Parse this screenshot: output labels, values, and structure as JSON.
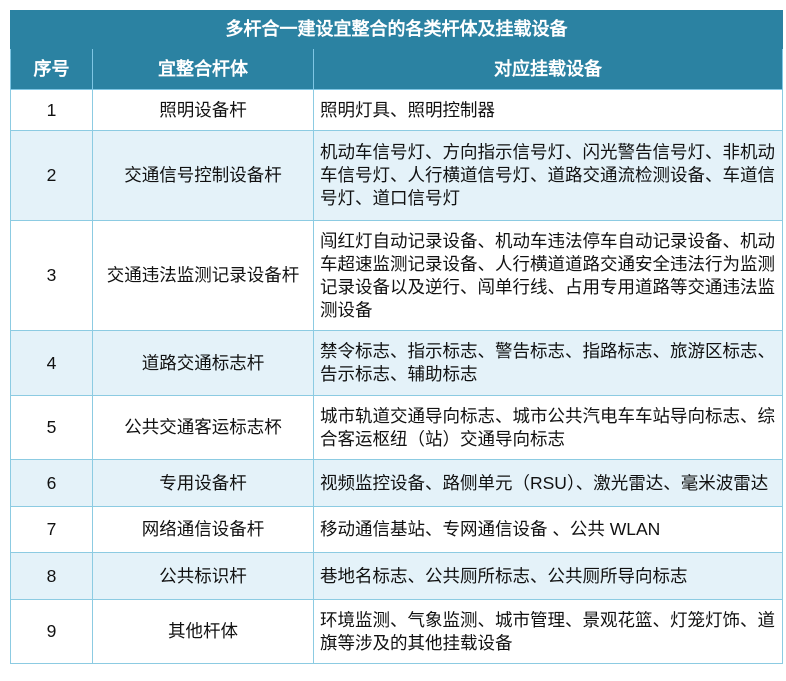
{
  "title": "多杆合一建设宜整合的各类杆体及挂载设备",
  "headers": [
    "序号",
    "宜整合杆体",
    "对应挂载设备"
  ],
  "rows": [
    {
      "no": "1",
      "pole": "照明设备杆",
      "devices": "照明灯具、照明控制器"
    },
    {
      "no": "2",
      "pole": "交通信号控制设备杆",
      "devices": "机动车信号灯、方向指示信号灯、闪光警告信号灯、非机动车信号灯、人行横道信号灯、道路交通流检测设备、车道信号灯、道口信号灯"
    },
    {
      "no": "3",
      "pole": "交通违法监测记录设备杆",
      "devices": "闯红灯自动记录设备、机动车违法停车自动记录设备、机动车超速监测记录设备、人行横道道路交通安全违法行为监测记录设备以及逆行、闯单行线、占用专用道路等交通违法监测设备"
    },
    {
      "no": "4",
      "pole": "道路交通标志杆",
      "devices": "禁令标志、指示标志、警告标志、指路标志、旅游区标志、告示标志、辅助标志"
    },
    {
      "no": "5",
      "pole": "公共交通客运标志杯",
      "devices": "城市轨道交通导向标志、城市公共汽电车车站导向标志、综合客运枢纽（站）交通导向标志"
    },
    {
      "no": "6",
      "pole": "专用设备杆",
      "devices": "视频监控设备、路侧单元（RSU）、激光雷达、毫米波雷达"
    },
    {
      "no": "7",
      "pole": "网络通信设备杆",
      "devices": "移动通信基站、专网通信设备 、公共 WLAN"
    },
    {
      "no": "8",
      "pole": "公共标识杆",
      "devices": "巷地名标志、公共厕所标志、公共厕所导向标志"
    },
    {
      "no": "9",
      "pole": "其他杆体",
      "devices": "环境监测、气象监测、城市管理、景观花篮、灯笼灯饰、道旗等涉及的其他挂载设备"
    }
  ],
  "colors": {
    "header": "#2b82a2",
    "alt_row": "#e4f2f9",
    "border": "#8ccbe2"
  }
}
